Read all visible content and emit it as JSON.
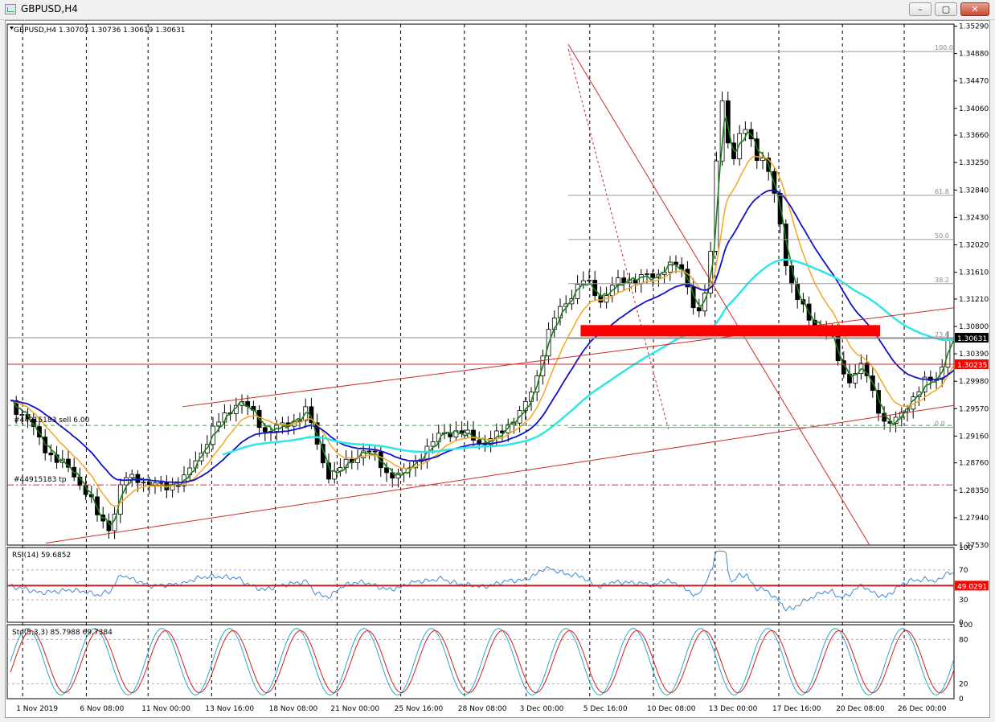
{
  "window": {
    "title": "GBPUSD,H4",
    "buttons": [
      "–",
      "▢",
      "✕"
    ]
  },
  "colors": {
    "background": "#ffffff",
    "bull_body": "#ffffff",
    "bear_body": "#000000",
    "ma_green": "#1a7d1a",
    "ma_orange": "#f5a623",
    "ma_blue": "#1010c8",
    "ma_cyan": "#2ee6e6",
    "channel": "#cc2a2a",
    "zone": "#ff0000",
    "rsi_line": "#3c8ad4",
    "sto_main": "#2aa6c8",
    "sto_signal": "#d02020"
  },
  "chart_data": [
    {
      "type": "candlestick",
      "name": "main",
      "header": "GBPUSD,H4  1.30703 1.30736 1.30619 1.30631",
      "symbol": "GBPUSD",
      "timeframe": "H4",
      "ohlc_last": {
        "open": 1.30703,
        "high": 1.30736,
        "low": 1.30619,
        "close": 1.30631
      },
      "ylim": [
        1.2753,
        1.3532
      ],
      "y_ticks": [
        "1.35290",
        "1.34880",
        "1.34470",
        "1.34060",
        "1.33660",
        "1.33250",
        "1.32840",
        "1.32430",
        "1.32020",
        "1.31610",
        "1.31210",
        "1.30800",
        "1.30390",
        "1.29980",
        "1.29570",
        "1.29160",
        "1.28760",
        "1.28350",
        "1.27940",
        "1.27530"
      ],
      "price_labels": [
        {
          "text": "1.30631",
          "value": 1.30631,
          "style": "bid"
        },
        {
          "text": "1.30235",
          "value": 1.30235,
          "style": "line"
        }
      ],
      "fibonacci": [
        {
          "label": "100.0",
          "value": 1.3491
        },
        {
          "label": "61.8",
          "value": 1.3276
        },
        {
          "label": "50.0",
          "value": 1.321
        },
        {
          "label": "38.2",
          "value": 1.3144
        },
        {
          "label": "23.6",
          "value": 1.3062
        },
        {
          "label": "0.0",
          "value": 1.2929
        }
      ],
      "order_lines": [
        {
          "label": "#44915183 sell 6.00",
          "value": 1.2932,
          "style": "green-dash"
        },
        {
          "label": "#44915183 tp",
          "value": 1.2843,
          "style": "red-dashdot"
        }
      ],
      "x_labels": [
        "1 Nov 2019",
        "6 Nov 08:00",
        "11 Nov 00:00",
        "13 Nov 16:00",
        "18 Nov 08:00",
        "21 Nov 00:00",
        "25 Nov 16:00",
        "28 Nov 08:00",
        "3 Dec 00:00",
        "5 Dec 16:00",
        "10 Dec 08:00",
        "13 Dec 00:00",
        "17 Dec 16:00",
        "20 Dec 08:00",
        "26 Dec 00:00"
      ],
      "close_path": [
        [
          0,
          1.2965
        ],
        [
          8,
          1.2945
        ],
        [
          16,
          1.2905
        ],
        [
          24,
          1.288
        ],
        [
          32,
          1.2862
        ],
        [
          40,
          1.283
        ],
        [
          46,
          1.279
        ],
        [
          52,
          1.278
        ],
        [
          58,
          1.285
        ],
        [
          66,
          1.2855
        ],
        [
          74,
          1.284
        ],
        [
          82,
          1.2842
        ],
        [
          90,
          1.285
        ],
        [
          96,
          1.288
        ],
        [
          104,
          1.292
        ],
        [
          112,
          1.295
        ],
        [
          118,
          1.297
        ],
        [
          124,
          1.2955
        ],
        [
          132,
          1.2925
        ],
        [
          140,
          1.2928
        ],
        [
          148,
          1.2942
        ],
        [
          154,
          1.2955
        ],
        [
          158,
          1.291
        ],
        [
          162,
          1.288
        ],
        [
          166,
          1.2852
        ],
        [
          172,
          1.287
        ],
        [
          178,
          1.2885
        ],
        [
          184,
          1.2895
        ],
        [
          190,
          1.2882
        ],
        [
          196,
          1.286
        ],
        [
          202,
          1.2855
        ],
        [
          210,
          1.288
        ],
        [
          218,
          1.29
        ],
        [
          224,
          1.2925
        ],
        [
          232,
          1.292
        ],
        [
          240,
          1.2915
        ],
        [
          246,
          1.2905
        ],
        [
          252,
          1.2915
        ],
        [
          258,
          1.2935
        ],
        [
          266,
          1.2955
        ],
        [
          272,
          1.2995
        ],
        [
          276,
          1.3045
        ],
        [
          280,
          1.308
        ],
        [
          284,
          1.31
        ],
        [
          290,
          1.3125
        ],
        [
          296,
          1.315
        ],
        [
          300,
          1.314
        ],
        [
          306,
          1.312
        ],
        [
          312,
          1.314
        ],
        [
          320,
          1.315
        ],
        [
          328,
          1.3155
        ],
        [
          334,
          1.315
        ],
        [
          340,
          1.3175
        ],
        [
          346,
          1.317
        ],
        [
          352,
          1.3135
        ],
        [
          356,
          1.3095
        ],
        [
          360,
          1.313
        ],
        [
          364,
          1.32
        ],
        [
          366,
          1.333
        ],
        [
          368,
          1.34
        ],
        [
          370,
          1.344
        ],
        [
          372,
          1.336
        ],
        [
          374,
          1.332
        ],
        [
          378,
          1.336
        ],
        [
          382,
          1.338
        ],
        [
          386,
          1.334
        ],
        [
          390,
          1.333
        ],
        [
          394,
          1.33
        ],
        [
          398,
          1.325
        ],
        [
          402,
          1.318
        ],
        [
          406,
          1.313
        ],
        [
          410,
          1.311
        ],
        [
          414,
          1.309
        ],
        [
          418,
          1.308
        ],
        [
          422,
          1.3075
        ],
        [
          426,
          1.306
        ],
        [
          430,
          1.302
        ],
        [
          434,
          1.3
        ],
        [
          438,
          1.301
        ],
        [
          442,
          1.302
        ],
        [
          446,
          1.299
        ],
        [
          450,
          1.296
        ],
        [
          454,
          1.293
        ],
        [
          458,
          1.2935
        ],
        [
          462,
          1.295
        ],
        [
          466,
          1.297
        ],
        [
          470,
          1.298
        ],
        [
          474,
          1.2995
        ],
        [
          478,
          1.3
        ],
        [
          482,
          1.301
        ],
        [
          486,
          1.3063
        ]
      ],
      "support_zone": {
        "from": 1.3065,
        "to": 1.3082,
        "x_start": 0.716,
        "x_end": 1.0
      }
    },
    {
      "type": "line",
      "name": "rsi",
      "header": "RSI(14) 59.6852",
      "indicator": "RSI(14)",
      "current": 59.6852,
      "ylim": [
        0,
        100
      ],
      "y_ticks": [
        "100",
        "70",
        "49.0291",
        "30",
        "0"
      ],
      "levels": [
        70,
        30
      ],
      "marker": {
        "text": "49.0291",
        "value": 49.0291
      }
    },
    {
      "type": "line",
      "name": "stochastic",
      "header": "Sto(5,3,3) 85.7988 69.7384",
      "indicator": "Sto(5,3,3)",
      "main": 85.7988,
      "signal": 69.7384,
      "ylim": [
        0,
        100
      ],
      "y_ticks": [
        "100",
        "80",
        "20",
        "0"
      ],
      "levels": [
        80,
        20
      ]
    }
  ]
}
